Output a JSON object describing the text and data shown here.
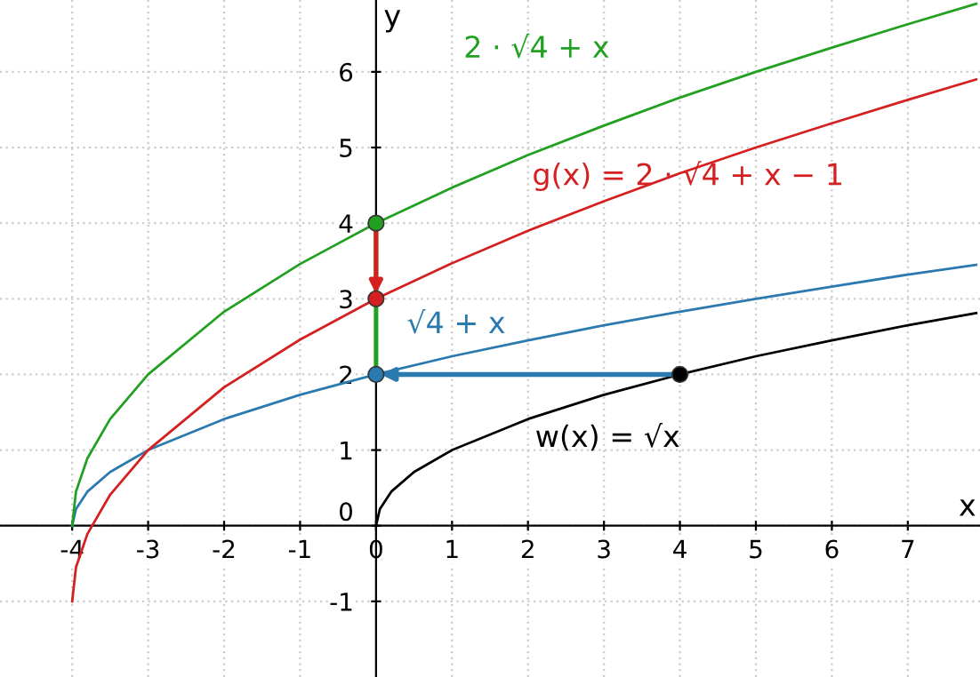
{
  "chart_data": {
    "type": "line",
    "xlabel": "x",
    "ylabel": "y",
    "xlim": [
      -4.95,
      7.95
    ],
    "ylim": [
      -2,
      6.95
    ],
    "xticks": [
      -4,
      -3,
      -2,
      -1,
      0,
      1,
      2,
      3,
      4,
      5,
      6,
      7
    ],
    "yticks": [
      -1,
      0,
      1,
      2,
      3,
      4,
      5,
      6
    ],
    "grid": true,
    "marker": "none",
    "series": [
      {
        "color": "#000000",
        "x": [
          0,
          0.05,
          0.2,
          0.5,
          1,
          2,
          3,
          4,
          5,
          6,
          7,
          7.9
        ],
        "values": [
          0,
          0.22,
          0.45,
          0.71,
          1,
          1.41,
          1.73,
          2,
          2.24,
          2.45,
          2.65,
          2.81
        ]
      },
      {
        "color": "#2a7ab0",
        "x": [
          -4,
          -3.95,
          -3.8,
          -3.5,
          -3,
          -2,
          -1,
          0,
          1,
          2,
          3,
          4,
          5,
          6,
          7,
          7.9
        ],
        "values": [
          0,
          0.22,
          0.45,
          0.71,
          1,
          1.41,
          1.73,
          2,
          2.24,
          2.45,
          2.65,
          2.83,
          3,
          3.16,
          3.32,
          3.45
        ]
      },
      {
        "color": "#22a022",
        "x": [
          -4,
          -3.95,
          -3.8,
          -3.5,
          -3,
          -2,
          -1,
          0,
          1,
          2,
          3,
          4,
          5,
          6,
          7,
          7.9
        ],
        "values": [
          0,
          0.45,
          0.89,
          1.41,
          2,
          2.83,
          3.46,
          4,
          4.47,
          4.9,
          5.29,
          5.66,
          6,
          6.32,
          6.63,
          6.9
        ]
      },
      {
        "color": "#d42020",
        "x": [
          -4,
          -3.95,
          -3.8,
          -3.5,
          -3,
          -2,
          -1,
          0,
          1,
          2,
          3,
          4,
          5,
          6,
          7,
          7.9
        ],
        "values": [
          -1,
          -0.55,
          -0.11,
          0.41,
          1,
          1.83,
          2.46,
          3,
          3.47,
          3.9,
          4.29,
          4.66,
          5,
          5.32,
          5.63,
          5.9
        ]
      },
      {
        "type": "scatter",
        "marker": "circle",
        "x": [
          0,
          0,
          0,
          4
        ],
        "values": [
          4,
          3,
          2,
          2
        ],
        "colors": [
          "#22a022",
          "#d42020",
          "#2a7ab0",
          "#000000"
        ]
      }
    ],
    "annotations": [
      "2 · √4 + x",
      "g(x) = 2 · √4 + x − 1",
      "√4 + x",
      "w(x) = √x"
    ]
  }
}
